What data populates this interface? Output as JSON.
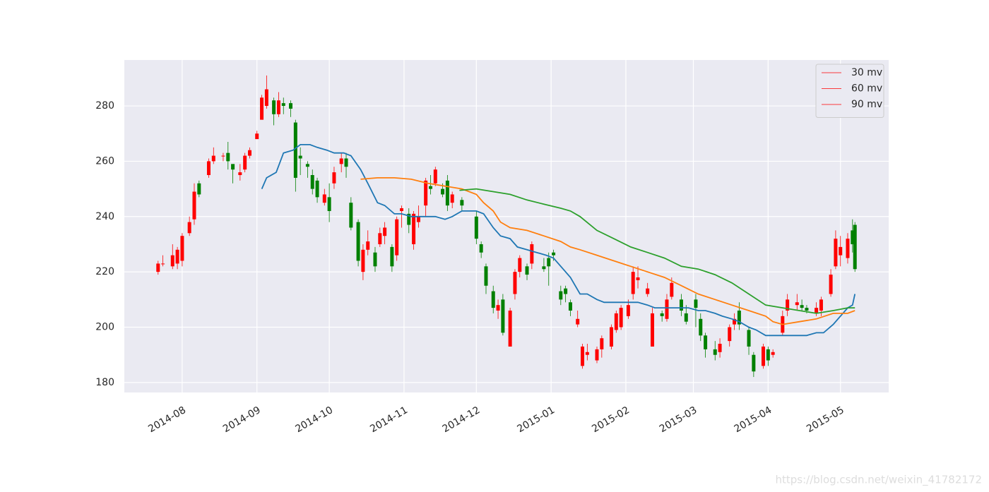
{
  "chart_data": {
    "type": "candlestick",
    "watermark": "https://blog.csdn.net/weixin_41782172",
    "up_color": "#ff0000",
    "down_color": "#008000",
    "grid": true,
    "legend": "upper right",
    "xlim": [
      "2014-07-08",
      "2015-05-21"
    ],
    "xticks": [
      {
        "value": "2014-08-01",
        "label": "2014-08"
      },
      {
        "value": "2014-09-01",
        "label": "2014-09"
      },
      {
        "value": "2014-10-01",
        "label": "2014-10"
      },
      {
        "value": "2014-11-01",
        "label": "2014-11"
      },
      {
        "value": "2014-12-01",
        "label": "2014-12"
      },
      {
        "value": "2015-01-01",
        "label": "2015-01"
      },
      {
        "value": "2015-02-01",
        "label": "2015-02"
      },
      {
        "value": "2015-03-01",
        "label": "2015-03"
      },
      {
        "value": "2015-04-01",
        "label": "2015-04"
      },
      {
        "value": "2015-05-01",
        "label": "2015-05"
      }
    ],
    "ylim": [
      176.4,
      296.6
    ],
    "yticks": [
      180,
      200,
      220,
      240,
      260,
      280
    ],
    "x": [
      "2014-07-22",
      "2014-07-24",
      "2014-07-28",
      "2014-07-30",
      "2014-08-01",
      "2014-08-04",
      "2014-08-06",
      "2014-08-08",
      "2014-08-12",
      "2014-08-14",
      "2014-08-18",
      "2014-08-20",
      "2014-08-22",
      "2014-08-25",
      "2014-08-27",
      "2014-08-29",
      "2014-09-01",
      "2014-09-03",
      "2014-09-05",
      "2014-09-08",
      "2014-09-10",
      "2014-09-12",
      "2014-09-15",
      "2014-09-17",
      "2014-09-19",
      "2014-09-22",
      "2014-09-24",
      "2014-09-26",
      "2014-09-29",
      "2014-10-01",
      "2014-10-03",
      "2014-10-06",
      "2014-10-08",
      "2014-10-10",
      "2014-10-13",
      "2014-10-15",
      "2014-10-17",
      "2014-10-20",
      "2014-10-22",
      "2014-10-24",
      "2014-10-27",
      "2014-10-29",
      "2014-10-31",
      "2014-11-03",
      "2014-11-05",
      "2014-11-07",
      "2014-11-10",
      "2014-11-12",
      "2014-11-14",
      "2014-11-17",
      "2014-11-19",
      "2014-11-21",
      "2014-11-25",
      "2014-12-01",
      "2014-12-03",
      "2014-12-05",
      "2014-12-08",
      "2014-12-10",
      "2014-12-12",
      "2014-12-15",
      "2014-12-17",
      "2014-12-19",
      "2014-12-22",
      "2014-12-24",
      "2014-12-29",
      "2014-12-31",
      "2015-01-02",
      "2015-01-05",
      "2015-01-07",
      "2015-01-09",
      "2015-01-12",
      "2015-01-14",
      "2015-01-16",
      "2015-01-20",
      "2015-01-22",
      "2015-01-26",
      "2015-01-28",
      "2015-01-30",
      "2015-02-02",
      "2015-02-04",
      "2015-02-06",
      "2015-02-10",
      "2015-02-12",
      "2015-02-16",
      "2015-02-18",
      "2015-02-20",
      "2015-02-24",
      "2015-02-26",
      "2015-03-02",
      "2015-03-04",
      "2015-03-06",
      "2015-03-10",
      "2015-03-12",
      "2015-03-16",
      "2015-03-18",
      "2015-03-20",
      "2015-03-24",
      "2015-03-26",
      "2015-03-30",
      "2015-04-01",
      "2015-04-03",
      "2015-04-07",
      "2015-04-09",
      "2015-04-13",
      "2015-04-15",
      "2015-04-17",
      "2015-04-21",
      "2015-04-23",
      "2015-04-27",
      "2015-04-29",
      "2015-05-01",
      "2015-05-04",
      "2015-05-06",
      "2015-05-07"
    ],
    "open": [
      220,
      223,
      222,
      223,
      224,
      234,
      239,
      252,
      255,
      260,
      262,
      263,
      259,
      255,
      257,
      262,
      268,
      275,
      280,
      282,
      277,
      281,
      281,
      274,
      262,
      259,
      255,
      253,
      245,
      247,
      252,
      259,
      261,
      245,
      238,
      220,
      228,
      227,
      230,
      233,
      229,
      226,
      242,
      241,
      230,
      238,
      244,
      251,
      252,
      250,
      253,
      245,
      246,
      240,
      230,
      222,
      213,
      206,
      210,
      193,
      212,
      220,
      222,
      223,
      222,
      225,
      227,
      213,
      214,
      209,
      201,
      186,
      190,
      188,
      192,
      193,
      199,
      200,
      204,
      212,
      217,
      212,
      193,
      205,
      203,
      211,
      210,
      205,
      210,
      203,
      197,
      192,
      191,
      195,
      201,
      206,
      199,
      190,
      186,
      192,
      190,
      198,
      206,
      208,
      208,
      207,
      205,
      206,
      212,
      222,
      226,
      225,
      235,
      237
    ],
    "high": [
      224,
      226,
      230,
      229,
      234,
      240,
      252,
      253,
      261,
      265,
      263,
      267,
      258,
      259,
      263,
      265,
      271,
      284,
      291,
      283,
      285,
      283,
      282,
      275,
      265,
      260,
      257,
      254,
      250,
      252,
      258,
      263,
      263,
      247,
      239,
      230,
      235,
      229,
      236,
      238,
      230,
      240,
      244,
      243,
      242,
      244,
      254,
      255,
      258,
      252,
      255,
      249,
      247,
      242,
      231,
      223,
      215,
      210,
      212,
      207,
      221,
      226,
      223,
      231,
      225,
      227,
      228,
      215,
      215,
      210,
      206,
      194,
      194,
      193,
      197,
      201,
      206,
      208,
      210,
      222,
      222,
      216,
      207,
      206,
      212,
      218,
      212,
      208,
      212,
      205,
      198,
      195,
      196,
      201,
      205,
      209,
      200,
      191,
      194,
      193,
      192,
      206,
      212,
      212,
      210,
      208,
      209,
      211,
      221,
      235,
      233,
      234,
      239,
      238
    ],
    "low": [
      219,
      222,
      221,
      221,
      222,
      233,
      237,
      247,
      254,
      259,
      260,
      257,
      252,
      253,
      256,
      261,
      268,
      276,
      279,
      273,
      276,
      277,
      276,
      249,
      255,
      254,
      248,
      245,
      244,
      238,
      250,
      256,
      254,
      235,
      222,
      217,
      226,
      220,
      229,
      230,
      220,
      224,
      236,
      234,
      228,
      236,
      240,
      248,
      251,
      247,
      242,
      243,
      242,
      230,
      225,
      212,
      205,
      203,
      197,
      193,
      210,
      218,
      217,
      221,
      220,
      215,
      224,
      208,
      209,
      204,
      200,
      185,
      188,
      187,
      189,
      192,
      198,
      199,
      203,
      210,
      214,
      211,
      193,
      202,
      202,
      210,
      204,
      201,
      200,
      195,
      189,
      188,
      189,
      193,
      199,
      199,
      190,
      182,
      185,
      186,
      189,
      197,
      204,
      206,
      206,
      205,
      204,
      204,
      211,
      221,
      222,
      223,
      227,
      220
    ],
    "close": [
      223,
      223,
      226,
      228,
      233,
      238,
      249,
      248,
      260,
      262,
      262,
      260,
      257,
      256,
      262,
      264,
      270,
      283,
      286,
      277,
      282,
      280,
      279,
      254,
      261,
      258,
      250,
      247,
      248,
      242,
      256,
      261,
      258,
      236,
      224,
      228,
      231,
      222,
      234,
      236,
      222,
      239,
      243,
      237,
      241,
      240,
      253,
      250,
      257,
      248,
      244,
      248,
      244,
      232,
      227,
      215,
      207,
      208,
      198,
      206,
      220,
      225,
      219,
      230,
      221,
      222,
      226,
      210,
      212,
      206,
      203,
      193,
      191,
      192,
      196,
      200,
      205,
      207,
      208,
      220,
      218,
      214,
      205,
      204,
      210,
      216,
      206,
      202,
      207,
      197,
      192,
      190,
      194,
      200,
      203,
      201,
      193,
      184,
      193,
      188,
      191,
      204,
      210,
      209,
      207,
      206,
      207,
      210,
      219,
      232,
      229,
      232,
      230,
      221
    ],
    "series": [
      {
        "name": "30 mv",
        "color": "#1f77b4",
        "legend_color": "#ff0000",
        "x": [
          "2014-09-03",
          "2014-09-05",
          "2014-09-09",
          "2014-09-12",
          "2014-09-16",
          "2014-09-19",
          "2014-09-23",
          "2014-09-26",
          "2014-09-30",
          "2014-10-03",
          "2014-10-07",
          "2014-10-10",
          "2014-10-14",
          "2014-10-17",
          "2014-10-21",
          "2014-10-24",
          "2014-10-28",
          "2014-10-31",
          "2014-11-04",
          "2014-11-07",
          "2014-11-11",
          "2014-11-14",
          "2014-11-18",
          "2014-11-21",
          "2014-11-25",
          "2014-12-01",
          "2014-12-04",
          "2014-12-08",
          "2014-12-11",
          "2014-12-15",
          "2014-12-18",
          "2014-12-22",
          "2014-12-26",
          "2014-12-30",
          "2015-01-02",
          "2015-01-06",
          "2015-01-09",
          "2015-01-13",
          "2015-01-16",
          "2015-01-20",
          "2015-01-23",
          "2015-01-27",
          "2015-02-02",
          "2015-02-06",
          "2015-02-10",
          "2015-02-13",
          "2015-02-17",
          "2015-02-20",
          "2015-02-24",
          "2015-02-27",
          "2015-03-03",
          "2015-03-06",
          "2015-03-10",
          "2015-03-13",
          "2015-03-17",
          "2015-03-20",
          "2015-03-24",
          "2015-03-27",
          "2015-03-31",
          "2015-04-03",
          "2015-04-07",
          "2015-04-10",
          "2015-04-14",
          "2015-04-17",
          "2015-04-21",
          "2015-04-24",
          "2015-04-28",
          "2015-05-01",
          "2015-05-04",
          "2015-05-06",
          "2015-05-07"
        ],
        "values": [
          250,
          254,
          256,
          263,
          264,
          266,
          266,
          265,
          264,
          263,
          263,
          262,
          257,
          252,
          245,
          244,
          241,
          241,
          240,
          240,
          240,
          240,
          239,
          240,
          242,
          242,
          241,
          236,
          233,
          232,
          229,
          228,
          227,
          226,
          225,
          221,
          218,
          212,
          212,
          210,
          209,
          209,
          209,
          209,
          208,
          207,
          207,
          207,
          207,
          207,
          206,
          206,
          205,
          204,
          203,
          202,
          200,
          199,
          197,
          197,
          197,
          197,
          197,
          197,
          198,
          198,
          201,
          204,
          207,
          208,
          212
        ]
      },
      {
        "name": "60 mv",
        "color": "#ff7f0e",
        "legend_color": "#ff0000",
        "x": [
          "2014-10-14",
          "2014-10-21",
          "2014-10-28",
          "2014-11-04",
          "2014-11-11",
          "2014-11-18",
          "2014-11-25",
          "2014-12-01",
          "2014-12-04",
          "2014-12-08",
          "2014-12-11",
          "2014-12-15",
          "2014-12-22",
          "2014-12-29",
          "2015-01-05",
          "2015-01-09",
          "2015-01-13",
          "2015-01-20",
          "2015-01-27",
          "2015-02-03",
          "2015-02-10",
          "2015-02-17",
          "2015-02-24",
          "2015-03-03",
          "2015-03-10",
          "2015-03-17",
          "2015-03-24",
          "2015-03-31",
          "2015-04-03",
          "2015-04-07",
          "2015-04-14",
          "2015-04-21",
          "2015-04-28",
          "2015-05-04",
          "2015-05-07"
        ],
        "values": [
          253.5,
          254,
          254,
          253.5,
          252,
          251,
          250,
          248,
          245,
          242,
          238,
          236,
          235,
          233,
          231,
          229,
          228,
          226,
          224,
          222,
          220,
          218,
          215,
          212,
          210,
          208,
          206,
          204,
          202,
          201,
          202,
          203,
          205,
          205,
          206
        ]
      },
      {
        "name": "90 mv",
        "color": "#2ca02c",
        "legend_color": "#ff0000",
        "x": [
          "2014-11-24",
          "2014-12-01",
          "2014-12-08",
          "2014-12-15",
          "2014-12-22",
          "2014-12-29",
          "2015-01-05",
          "2015-01-09",
          "2015-01-13",
          "2015-01-20",
          "2015-01-27",
          "2015-02-03",
          "2015-02-10",
          "2015-02-17",
          "2015-02-24",
          "2015-03-03",
          "2015-03-10",
          "2015-03-17",
          "2015-03-24",
          "2015-03-31",
          "2015-04-07",
          "2015-04-14",
          "2015-04-21",
          "2015-04-28",
          "2015-05-04",
          "2015-05-07"
        ],
        "values": [
          249.5,
          250,
          249,
          248,
          246,
          244.5,
          243,
          242,
          240,
          235,
          232,
          229,
          227,
          225,
          222,
          221,
          219,
          216,
          212,
          208,
          207,
          206,
          205,
          206,
          207,
          207
        ]
      }
    ]
  }
}
